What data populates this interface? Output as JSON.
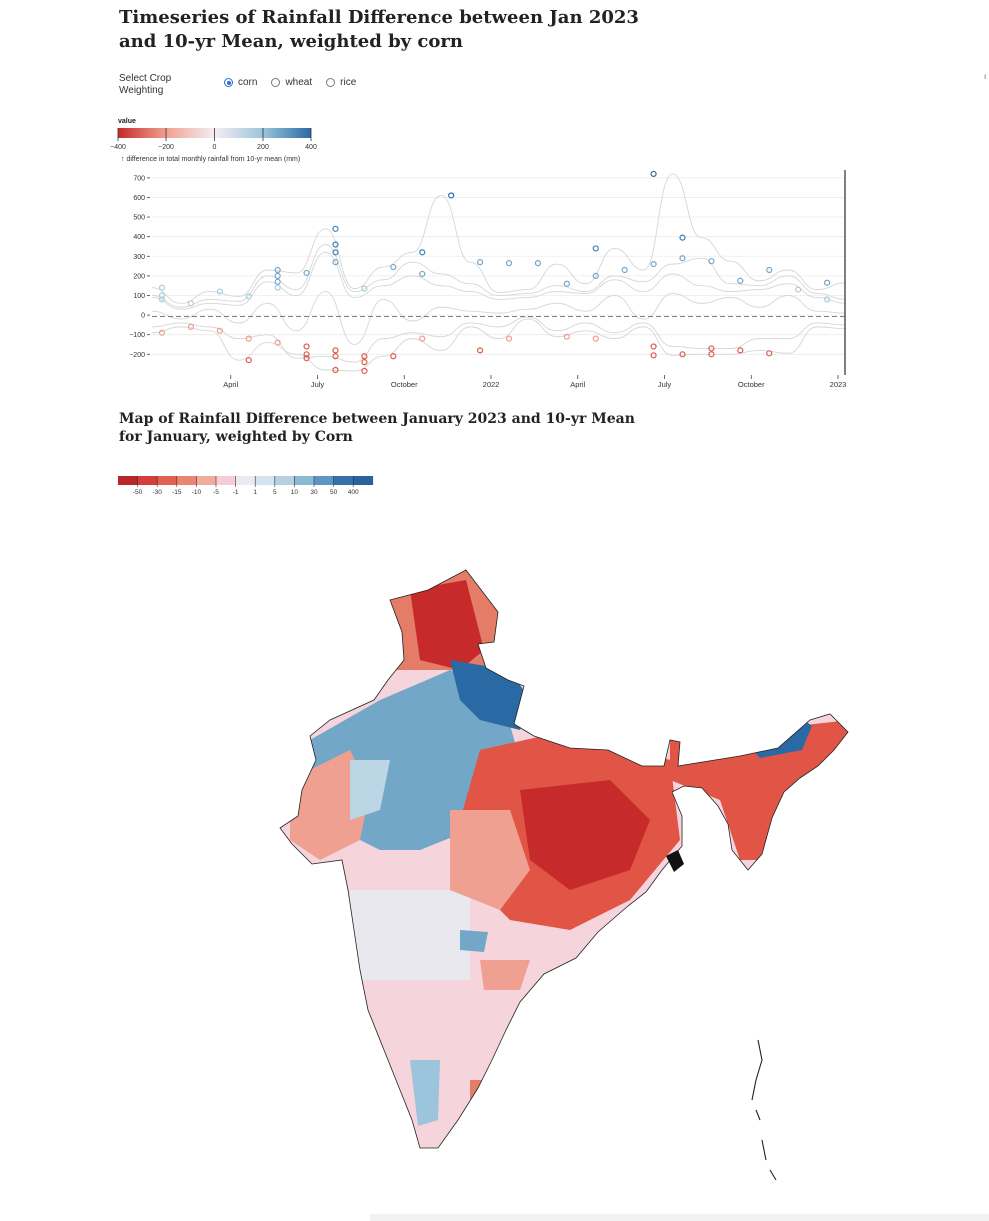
{
  "header": {
    "title": "Timeseries of Rainfall Difference between Jan 2023 and 10-yr Mean, weighted by corn"
  },
  "controls": {
    "label": "Select Crop Weighting",
    "options": [
      {
        "label": "corn",
        "selected": true
      },
      {
        "label": "wheat",
        "selected": false
      },
      {
        "label": "rice",
        "selected": false
      }
    ]
  },
  "legend1": {
    "title": "value",
    "ticks": [
      "−400",
      "−200",
      "0",
      "200",
      "400"
    ]
  },
  "chart_data": {
    "type": "line",
    "ylabel": "↑ difference in total monthly rainfall from 10-yr mean (mm)",
    "yticks": [
      "700",
      "600",
      "500",
      "400",
      "300",
      "200",
      "100",
      "0",
      "−100",
      "−200"
    ],
    "ylim": [
      -280,
      740
    ],
    "xticks": [
      "April",
      "July",
      "October",
      "2022",
      "April",
      "July",
      "October",
      "2023"
    ],
    "x_months": [
      "2021-01",
      "2021-02",
      "2021-03",
      "2021-04",
      "2021-05",
      "2021-06",
      "2021-07",
      "2021-08",
      "2021-09",
      "2021-10",
      "2021-11",
      "2021-12",
      "2022-01",
      "2022-02",
      "2022-03",
      "2022-04",
      "2022-05",
      "2022-06",
      "2022-07",
      "2022-08",
      "2022-09",
      "2022-10",
      "2022-11",
      "2022-12",
      "2023-01"
    ],
    "grid": true,
    "series": [
      {
        "values": [
          140,
          60,
          120,
          95,
          230,
          215,
          440,
          135,
          245,
          320,
          610,
          270,
          115,
          130,
          260,
          160,
          340,
          230,
          720,
          395,
          275,
          175,
          230,
          130,
          165
        ]
      },
      {
        "values": [
          100,
          40,
          80,
          70,
          200,
          130,
          360,
          120,
          180,
          270,
          210,
          160,
          100,
          110,
          150,
          120,
          200,
          170,
          260,
          290,
          160,
          150,
          200,
          110,
          80
        ]
      },
      {
        "values": [
          90,
          30,
          60,
          50,
          170,
          100,
          320,
          90,
          150,
          200,
          150,
          120,
          80,
          90,
          120,
          110,
          180,
          120,
          210,
          150,
          120,
          130,
          160,
          90,
          60
        ]
      },
      {
        "values": [
          -90,
          -60,
          -80,
          -230,
          -140,
          -200,
          -280,
          -285,
          -210,
          -120,
          -180,
          -60,
          -120,
          -20,
          -110,
          -80,
          -120,
          -60,
          -205,
          -200,
          -200,
          -180,
          -195,
          -60,
          -70
        ]
      },
      {
        "values": [
          -60,
          -40,
          -60,
          -120,
          -100,
          -220,
          -210,
          -240,
          -120,
          -90,
          -110,
          -40,
          -60,
          -10,
          -80,
          -40,
          -90,
          -40,
          -160,
          -170,
          -170,
          -120,
          -120,
          -40,
          -50
        ]
      },
      {
        "values": [
          20,
          -20,
          30,
          -40,
          60,
          -80,
          120,
          -150,
          80,
          -30,
          40,
          20,
          10,
          30,
          60,
          20,
          100,
          -20,
          110,
          60,
          90,
          40,
          100,
          20,
          10
        ]
      }
    ],
    "markers": [
      [
        0,
        140
      ],
      [
        0,
        100
      ],
      [
        0,
        80
      ],
      [
        0,
        -90
      ],
      [
        1,
        60
      ],
      [
        1,
        -60
      ],
      [
        2,
        120
      ],
      [
        2,
        -80
      ],
      [
        3,
        95
      ],
      [
        3,
        -230
      ],
      [
        3,
        -120
      ],
      [
        4,
        230
      ],
      [
        4,
        200
      ],
      [
        4,
        170
      ],
      [
        4,
        140
      ],
      [
        4,
        -140
      ],
      [
        5,
        215
      ],
      [
        5,
        -200
      ],
      [
        5,
        -220
      ],
      [
        5,
        -160
      ],
      [
        6,
        440
      ],
      [
        6,
        360
      ],
      [
        6,
        320
      ],
      [
        6,
        270
      ],
      [
        6,
        -280
      ],
      [
        6,
        -210
      ],
      [
        6,
        -180
      ],
      [
        7,
        135
      ],
      [
        7,
        -285
      ],
      [
        7,
        -240
      ],
      [
        7,
        -210
      ],
      [
        8,
        245
      ],
      [
        8,
        -210
      ],
      [
        9,
        320
      ],
      [
        9,
        210
      ],
      [
        9,
        -120
      ],
      [
        10,
        610
      ],
      [
        11,
        270
      ],
      [
        11,
        -180
      ],
      [
        12,
        265
      ],
      [
        12,
        -120
      ],
      [
        13,
        265
      ],
      [
        14,
        160
      ],
      [
        14,
        -110
      ],
      [
        15,
        340
      ],
      [
        15,
        200
      ],
      [
        15,
        -120
      ],
      [
        16,
        230
      ],
      [
        17,
        720
      ],
      [
        17,
        260
      ],
      [
        17,
        -205
      ],
      [
        17,
        -160
      ],
      [
        18,
        395
      ],
      [
        18,
        290
      ],
      [
        18,
        -200
      ],
      [
        19,
        275
      ],
      [
        19,
        -200
      ],
      [
        19,
        -170
      ],
      [
        20,
        175
      ],
      [
        20,
        -180
      ],
      [
        21,
        230
      ],
      [
        21,
        -195
      ],
      [
        22,
        130
      ],
      [
        23,
        165
      ],
      [
        23,
        80
      ]
    ]
  },
  "map": {
    "title": "Map of Rainfall Difference between January 2023 and 10-yr Mean for January, weighted by Corn",
    "legend_ticks": [
      "-50",
      "-30",
      "-15",
      "-10",
      "-5",
      "-1",
      "1",
      "5",
      "10",
      "30",
      "50",
      "400"
    ]
  },
  "colors": {
    "deep_red": "#c62a2a",
    "red": "#e05545",
    "light_red": "#f0a090",
    "pink": "#f6d4dc",
    "neutral": "#e8e8ee",
    "light_blue": "#bcd6e6",
    "blue": "#73a7c8",
    "deep_blue": "#2a6aa4"
  },
  "misc": {
    "corner_glyph": "ı"
  }
}
